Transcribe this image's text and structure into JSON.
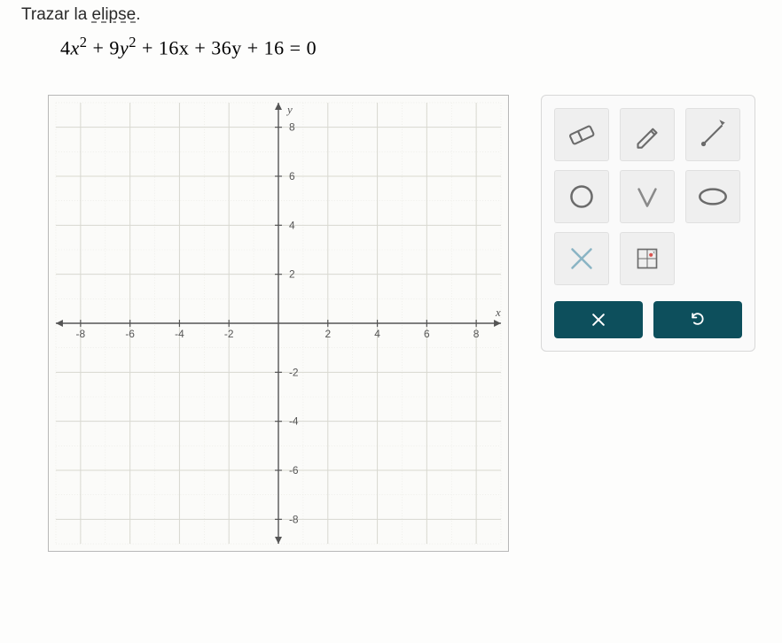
{
  "prompt": {
    "prefix": "Trazar la ",
    "underlined": "elipse",
    "suffix": "."
  },
  "equation_parts": {
    "t1": "4",
    "var1": "x",
    "e1": "2",
    "plus1": " + 9",
    "var2": "y",
    "e2": "2",
    "rest": " + 16x + 36y + 16 = 0"
  },
  "graph": {
    "xmin": -9,
    "xmax": 9,
    "ymin": -9,
    "ymax": 9,
    "xticks": [
      -8,
      -6,
      -4,
      -2,
      2,
      4,
      6,
      8
    ],
    "yticks": [
      -8,
      -6,
      -4,
      -2,
      2,
      4,
      6,
      8
    ],
    "minor_step": 1,
    "gridline_color": "#d8d8d0",
    "minor_gridline_color": "#e8e8e2",
    "axis_color": "#555",
    "tick_font_size": 12,
    "x_label": "x",
    "y_label": "y",
    "bg": "#fbfbf9"
  },
  "tools": {
    "items": [
      {
        "name": "eraser-tool",
        "icon": "eraser",
        "color": "#6b6b6b"
      },
      {
        "name": "pencil-tool",
        "icon": "pencil",
        "color": "#6b6b6b"
      },
      {
        "name": "line-tool",
        "icon": "line-diag",
        "color": "#6b6b6b"
      },
      {
        "name": "circle-tool",
        "icon": "circle",
        "color": "#6b6b6b"
      },
      {
        "name": "parabola-tool",
        "icon": "V",
        "color": "#8a8a8a"
      },
      {
        "name": "ellipse-tool",
        "icon": "ellipse",
        "color": "#6b6b6b"
      },
      {
        "name": "asymptote-tool",
        "icon": "X",
        "color": "#8ab4c4"
      },
      {
        "name": "graph-paper-tool",
        "icon": "grid-dot",
        "color": "#6b6b6b"
      },
      {
        "name": "empty",
        "icon": "",
        "color": ""
      }
    ],
    "bg": "#efefef"
  },
  "actions": {
    "clear": {
      "name": "clear-button",
      "color": "#0d4f5c"
    },
    "undo": {
      "name": "undo-button",
      "color": "#0d4f5c"
    }
  }
}
